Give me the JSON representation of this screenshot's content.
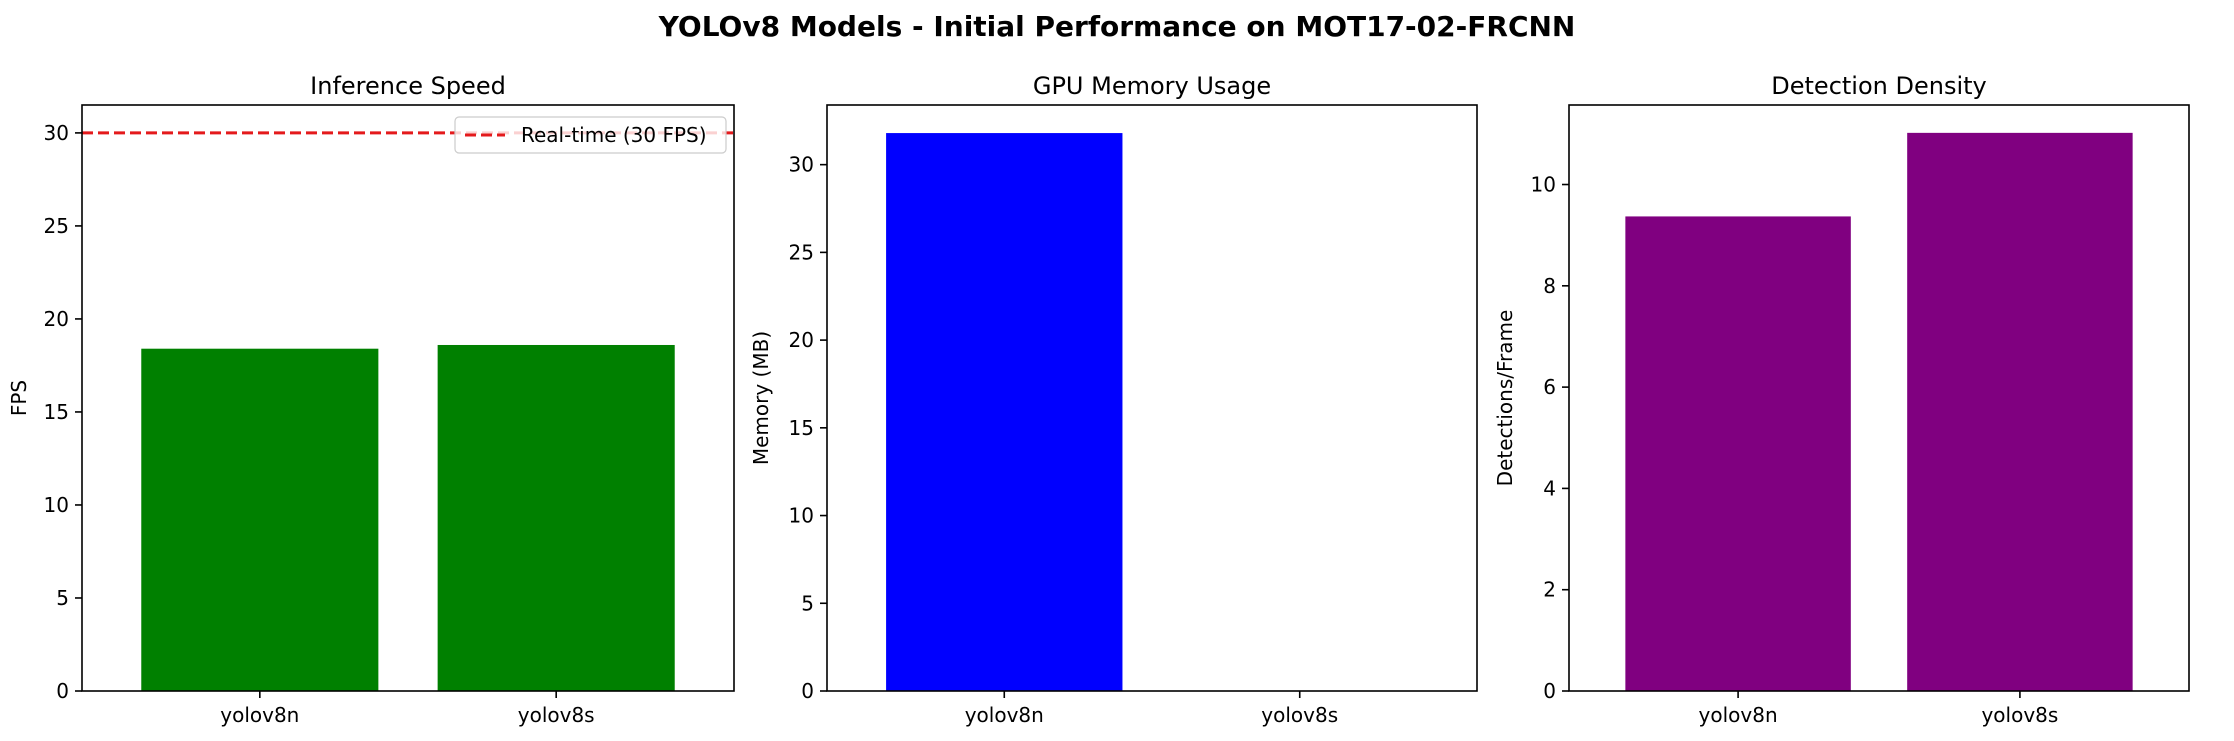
{
  "suptitle": "YOLOv8 Models - Initial Performance on MOT17-02-FRCNN",
  "chart_data": [
    {
      "type": "bar",
      "title": "Inference Speed",
      "xlabel": "",
      "ylabel": "FPS",
      "categories": [
        "yolov8n",
        "yolov8s"
      ],
      "values": [
        18.4,
        18.6
      ],
      "color": "#008000",
      "ylim": [
        0,
        31.5
      ],
      "yticks": [
        0,
        5,
        10,
        15,
        20,
        25,
        30
      ],
      "reference_line": {
        "value": 30,
        "label": "Real-time (30 FPS)",
        "color": "#e41a1c",
        "style": "dashed"
      },
      "legend": "top-right",
      "grid": false
    },
    {
      "type": "bar",
      "title": "GPU Memory Usage",
      "xlabel": "",
      "ylabel": "Memory (MB)",
      "categories": [
        "yolov8n",
        "yolov8s"
      ],
      "values": [
        31.8,
        0
      ],
      "color": "#0000ff",
      "ylim": [
        0,
        33.4
      ],
      "yticks": [
        0,
        5,
        10,
        15,
        20,
        25,
        30
      ],
      "grid": false
    },
    {
      "type": "bar",
      "title": "Detection Density",
      "xlabel": "",
      "ylabel": "Detections/Frame",
      "categories": [
        "yolov8n",
        "yolov8s"
      ],
      "values": [
        9.37,
        11.02
      ],
      "color": "#800080",
      "ylim": [
        0,
        11.57
      ],
      "yticks": [
        0,
        2,
        4,
        6,
        8,
        10
      ],
      "grid": false
    }
  ]
}
